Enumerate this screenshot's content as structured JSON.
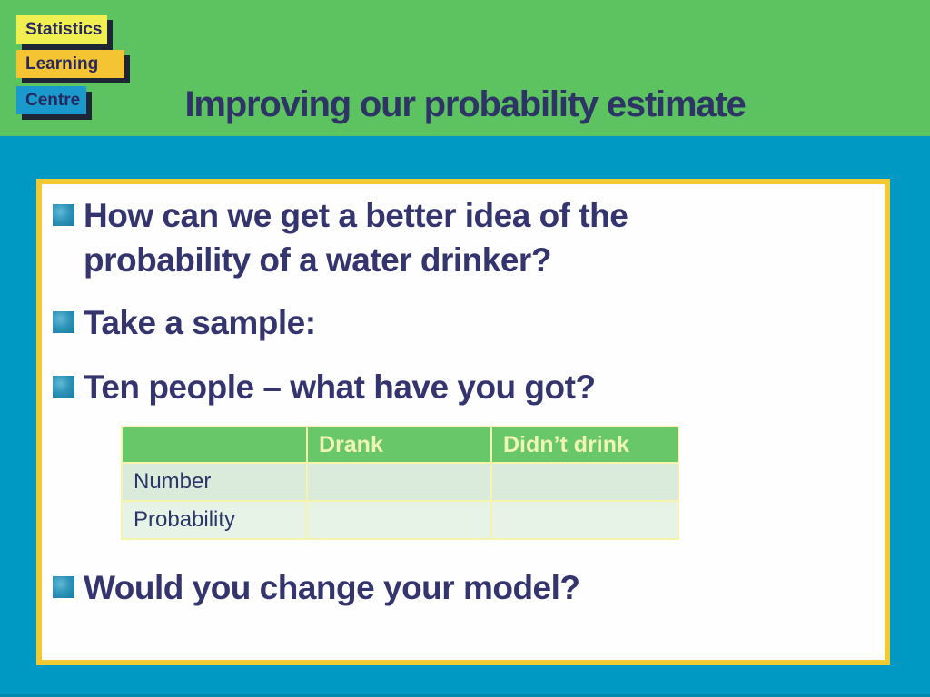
{
  "slide": {
    "title": "Improving our probability estimate",
    "logo": {
      "line1": "Statistics",
      "line2": "Learning",
      "line3": "Centre"
    },
    "bullets": [
      {
        "text": "How can we get a better idea of the probability of a water drinker?"
      },
      {
        "text": "Take a sample:"
      },
      {
        "text": "Ten people – what have you got?"
      },
      {
        "text": "Would you change your model?"
      }
    ],
    "table": {
      "columns": [
        "",
        "Drank",
        "Didn’t drink"
      ],
      "rows": [
        {
          "label": "Number",
          "cells": [
            "",
            ""
          ]
        },
        {
          "label": "Probability",
          "cells": [
            "",
            ""
          ]
        }
      ]
    },
    "colors": {
      "header_green": "#5CC360",
      "body_blue": "#0099C4",
      "box_border_yellow": "#F2C833",
      "title_navy": "#2E3566",
      "bullet_text_navy": "#34346F",
      "bullet_square_teal": "#2D93B8",
      "table_header_green": "#68C768",
      "table_header_text": "#F0F5B4",
      "table_row_number_bg": "#DAEBDB",
      "table_row_probability_bg": "#E8F3E8",
      "table_grid_yellow": "#F5F3AC",
      "logo_statistics_bg": "#EFEF52",
      "logo_learning_bg": "#F4C433",
      "logo_centre_bg": "#1A99CD",
      "logo_text_navy": "#28285E"
    }
  }
}
